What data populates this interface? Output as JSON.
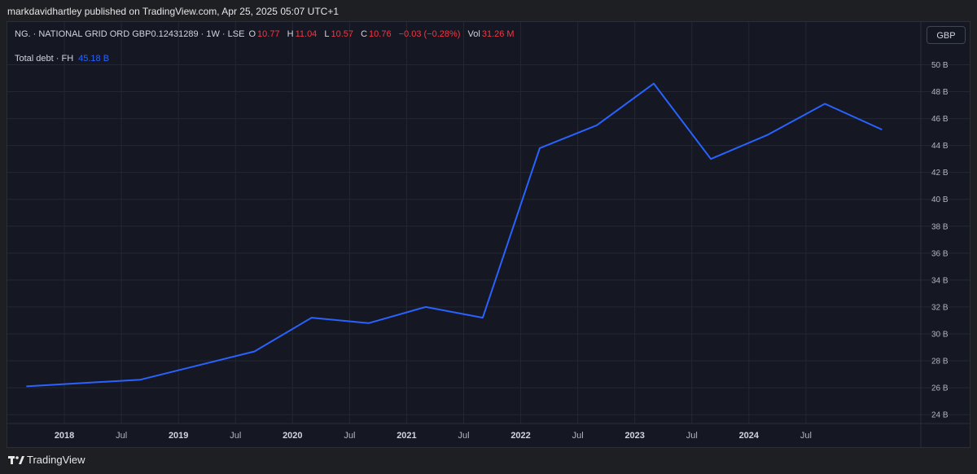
{
  "header": {
    "published": "markdavidhartley published on TradingView.com, Apr 25, 2025 05:07 UTC+1"
  },
  "symbol": {
    "name": "NG. · NATIONAL GRID ORD GBP0.12431289 · 1W · LSE",
    "o_label": "O",
    "o": "10.77",
    "h_label": "H",
    "h": "11.04",
    "l_label": "L",
    "l": "10.57",
    "c_label": "C",
    "c": "10.76",
    "change": "−0.03 (−0.28%)",
    "vol_label": "Vol",
    "vol": "31.26 M"
  },
  "indicator": {
    "label": "Total debt · FH",
    "value": "45.18 B"
  },
  "currency": "GBP",
  "footer": {
    "brand": "TradingView"
  },
  "colors": {
    "line": "#2962ff",
    "down": "#f23645",
    "grid": "#242733",
    "bg": "#151822"
  },
  "chart_data": {
    "type": "line",
    "series": [
      {
        "x": [
          "2017-09",
          "2018-09",
          "2019-09",
          "2020-03",
          "2020-09",
          "2021-03",
          "2021-09",
          "2022-03",
          "2022-09",
          "2023-03",
          "2023-09",
          "2024-03",
          "2024-09",
          "2025-03"
        ],
        "values": [
          26.1,
          26.6,
          28.7,
          31.2,
          30.8,
          32.0,
          31.2,
          43.8,
          45.5,
          48.6,
          43.0,
          44.8,
          47.1,
          45.18
        ]
      }
    ],
    "y_ticks": [
      24,
      26,
      28,
      30,
      32,
      34,
      36,
      38,
      40,
      42,
      44,
      46,
      48,
      50
    ],
    "y_tick_labels": [
      "24 B",
      "26 B",
      "28 B",
      "30 B",
      "32 B",
      "34 B",
      "36 B",
      "38 B",
      "40 B",
      "42 B",
      "44 B",
      "46 B",
      "48 B",
      "50 B"
    ],
    "ylim": [
      23.1,
      51.3
    ],
    "x_ticks": [
      "2018-01",
      "2018-07",
      "2019-01",
      "2019-07",
      "2020-01",
      "2020-07",
      "2021-01",
      "2021-07",
      "2022-01",
      "2022-07",
      "2023-01",
      "2023-07",
      "2024-01",
      "2024-07"
    ],
    "x_tick_labels": [
      "2018",
      "Jul",
      "2019",
      "Jul",
      "2020",
      "Jul",
      "2021",
      "Jul",
      "2022",
      "Jul",
      "2023",
      "Jul",
      "2024",
      "Jul"
    ],
    "x_range": [
      "2017-07",
      "2025-07"
    ],
    "grid": true
  }
}
